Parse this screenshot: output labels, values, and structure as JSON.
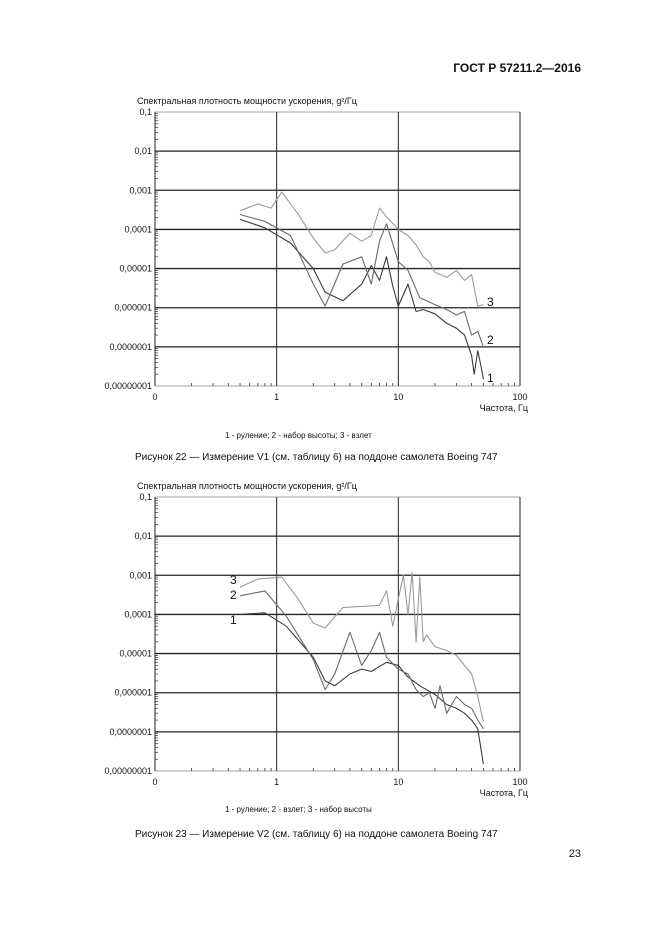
{
  "document": {
    "header": "ГОСТ Р 57211.2—2016",
    "page_number": "23"
  },
  "figures": [
    {
      "caption": "Рисунок 22 — Измерение V1 (см. таблицу 6) на поддоне самолета Boeing 747",
      "legend": "1 - руление; 2 - набор высоты; 3 - взлет"
    },
    {
      "caption": "Рисунок 23 — Измерение V2 (см. таблицу 6) на поддоне самолета Boeing 747",
      "legend": "1 - руление; 2 - взлет; 3 - набор высоты"
    }
  ],
  "chart_data": [
    {
      "type": "line",
      "ylabel": "Спектральная плотность мощности ускорения, g²/Гц",
      "xlabel": "Частота, Гц",
      "x_scale": "log",
      "y_scale": "log",
      "xlim": [
        0.1,
        100
      ],
      "ylim": [
        1e-08,
        0.1
      ],
      "x_tick_labels": [
        "0",
        "1",
        "10",
        "100"
      ],
      "y_tick_labels": [
        "0,1",
        "0,01",
        "0,001",
        "0,0001",
        "0,00001",
        "0,000001",
        "0,0000001",
        "0,00000001"
      ],
      "grid": true,
      "series": [
        {
          "name": "1",
          "color": "#3a3a3a",
          "x": [
            0.5,
            0.8,
            1.3,
            2,
            2.5,
            3.5,
            5,
            6,
            7,
            8,
            9,
            10,
            12,
            14,
            16,
            20,
            25,
            30,
            35,
            40,
            42,
            45,
            48,
            50
          ],
          "y": [
            0.00018,
            0.00011,
            4.5e-05,
            1e-05,
            2.5e-06,
            1.5e-06,
            4e-06,
            1.2e-05,
            5e-06,
            2e-05,
            3.5e-06,
            1.1e-06,
            4e-06,
            8e-07,
            9e-07,
            7e-07,
            4e-07,
            3e-07,
            2e-07,
            6e-08,
            2e-08,
            8e-08,
            3e-08,
            1.5e-08
          ]
        },
        {
          "name": "2",
          "color": "#6a6a6a",
          "x": [
            0.5,
            0.8,
            1.3,
            2,
            2.5,
            3.5,
            5,
            6,
            7,
            8,
            10,
            12,
            15,
            20,
            25,
            30,
            35,
            40,
            45,
            50
          ],
          "y": [
            0.00024,
            0.00016,
            7e-05,
            4e-06,
            1.1e-06,
            1.3e-05,
            2e-05,
            4e-06,
            5e-05,
            0.00014,
            1.5e-05,
            9e-06,
            1.8e-06,
            1.2e-06,
            9e-07,
            6.5e-07,
            8e-07,
            2e-07,
            2.5e-07,
            1e-07
          ]
        },
        {
          "name": "3",
          "color": "#9a9a9a",
          "x": [
            0.5,
            0.7,
            0.9,
            1.1,
            1.5,
            2,
            2.5,
            3,
            4,
            5,
            6,
            7,
            8,
            10,
            12,
            14,
            16,
            18,
            20,
            25,
            30,
            35,
            40,
            45,
            50
          ],
          "y": [
            0.0003,
            0.00045,
            0.00035,
            0.0009,
            0.00025,
            6e-05,
            2.5e-05,
            3e-05,
            8e-05,
            5e-05,
            7e-05,
            0.00035,
            0.00021,
            0.0001,
            7e-05,
            4e-05,
            2e-05,
            1.5e-05,
            8e-06,
            6e-06,
            9e-06,
            5e-06,
            7e-06,
            1.1e-06,
            1.2e-06
          ]
        }
      ],
      "curve_labels": [
        "1",
        "2",
        "3"
      ]
    },
    {
      "type": "line",
      "ylabel": "Спектральная плотность мощности ускорения, g²/Гц",
      "xlabel": "Частота, Гц",
      "x_scale": "log",
      "y_scale": "log",
      "xlim": [
        0.1,
        100
      ],
      "ylim": [
        1e-08,
        0.1
      ],
      "x_tick_labels": [
        "0",
        "1",
        "10",
        "100"
      ],
      "y_tick_labels": [
        "0,1",
        "0,01",
        "0,001",
        "0,0001",
        "0,00001",
        "0,000001",
        "0,0000001",
        "0,00000001"
      ],
      "grid": true,
      "series": [
        {
          "name": "1",
          "color": "#3a3a3a",
          "x": [
            0.5,
            0.8,
            1.2,
            2,
            2.5,
            3,
            4,
            5,
            6,
            8,
            10,
            12,
            15,
            20,
            25,
            30,
            35,
            40,
            45,
            50
          ],
          "y": [
            0.0001,
            0.00011,
            5e-05,
            8e-06,
            2e-06,
            1.5e-06,
            3e-06,
            4e-06,
            3.5e-06,
            6e-06,
            5e-06,
            2.5e-06,
            1.5e-06,
            9e-07,
            5e-07,
            4e-07,
            3e-07,
            2e-07,
            1.2e-07,
            1.5e-08
          ]
        },
        {
          "name": "2",
          "color": "#6a6a6a",
          "x": [
            0.5,
            0.8,
            1.2,
            2,
            2.5,
            3,
            4,
            5,
            6,
            7,
            8,
            10,
            12,
            14,
            16,
            18,
            20,
            22,
            25,
            30,
            35,
            40,
            45,
            50
          ],
          "y": [
            0.0003,
            0.0004,
            9e-05,
            7e-06,
            1.2e-06,
            3e-06,
            3.5e-05,
            5e-06,
            1.2e-05,
            3.5e-05,
            8e-06,
            4e-06,
            3e-06,
            1.2e-06,
            8e-07,
            1e-06,
            4e-07,
            1.5e-06,
            3e-07,
            8e-07,
            5e-07,
            4e-07,
            2e-07,
            1.2e-07
          ]
        },
        {
          "name": "3",
          "color": "#9a9a9a",
          "x": [
            0.5,
            0.7,
            1.1,
            1.5,
            2,
            2.5,
            3.5,
            5,
            7,
            8,
            9,
            10,
            11,
            12,
            13,
            14,
            15,
            16,
            17,
            20,
            25,
            30,
            35,
            40,
            45,
            50
          ],
          "y": [
            0.0005,
            0.0008,
            0.0009,
            0.00025,
            6e-05,
            4.5e-05,
            0.00015,
            0.00016,
            0.00017,
            0.0004,
            5e-05,
            0.00025,
            0.001,
            0.0001,
            0.0012,
            2e-05,
            0.0009,
            2e-05,
            3e-05,
            1.5e-05,
            1.2e-05,
            9e-06,
            5e-06,
            3e-06,
            8e-07,
            1.8e-07
          ]
        }
      ],
      "curve_labels": [
        "3",
        "2",
        "1"
      ]
    }
  ]
}
